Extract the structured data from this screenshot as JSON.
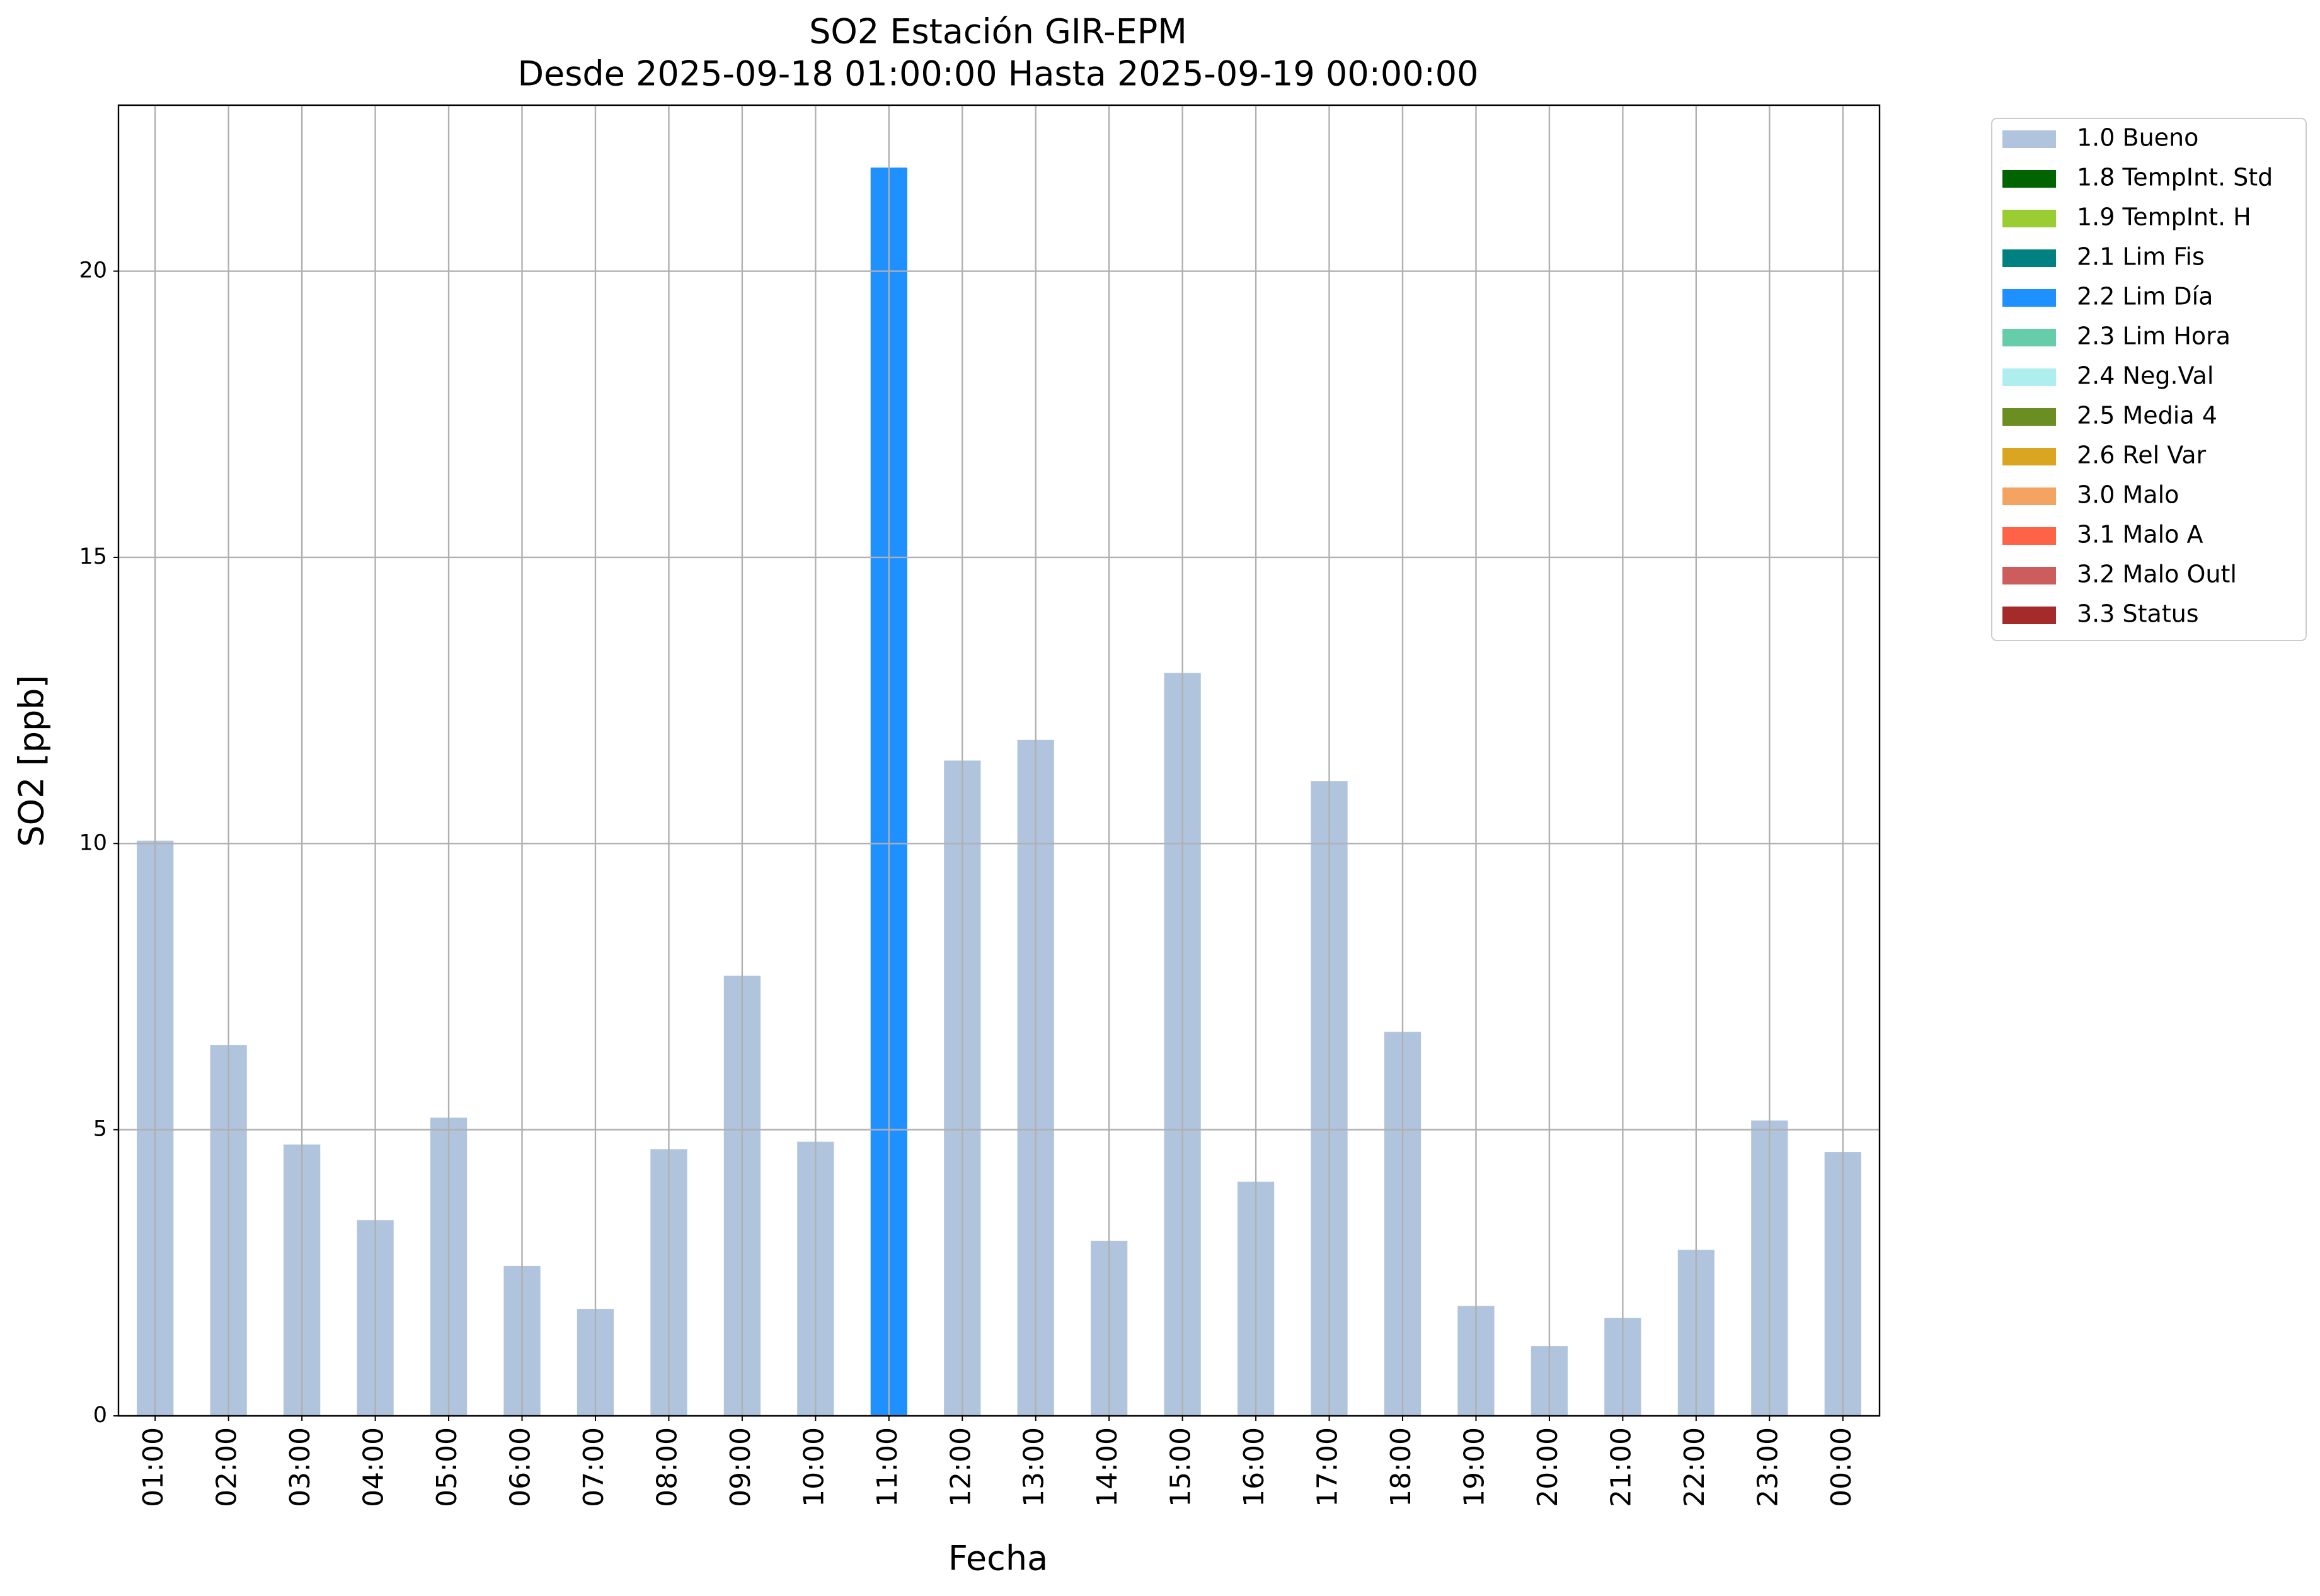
{
  "chart_data": {
    "type": "bar",
    "stacked": true,
    "title": "SO2 Estación GIR-EPM",
    "subtitle": "Desde 2025-09-18 01:00:00 Hasta 2025-09-19 00:00:00",
    "xlabel": "Fecha",
    "ylabel": "SO2 [ppb]",
    "categories": [
      "01:00",
      "02:00",
      "03:00",
      "04:00",
      "05:00",
      "06:00",
      "07:00",
      "08:00",
      "09:00",
      "10:00",
      "11:00",
      "12:00",
      "13:00",
      "14:00",
      "15:00",
      "16:00",
      "17:00",
      "18:00",
      "19:00",
      "20:00",
      "21:00",
      "22:00",
      "23:00",
      "00:00"
    ],
    "series": [
      {
        "name": "1.0 Bueno",
        "color": "#b0c4de",
        "values": [
          10.05,
          6.48,
          4.74,
          3.42,
          5.21,
          2.62,
          1.87,
          4.66,
          7.69,
          4.79,
          null,
          11.45,
          11.81,
          3.06,
          12.98,
          4.09,
          11.09,
          6.71,
          1.92,
          1.22,
          1.71,
          2.9,
          5.16,
          4.61
        ]
      },
      {
        "name": "1.8 TempInt. Std",
        "color": "#006400",
        "values": [
          null,
          null,
          null,
          null,
          null,
          null,
          null,
          null,
          null,
          null,
          null,
          null,
          null,
          null,
          null,
          null,
          null,
          null,
          null,
          null,
          null,
          null,
          null,
          null
        ]
      },
      {
        "name": "1.9 TempInt. H",
        "color": "#9acd32",
        "values": [
          null,
          null,
          null,
          null,
          null,
          null,
          null,
          null,
          null,
          null,
          null,
          null,
          null,
          null,
          null,
          null,
          null,
          null,
          null,
          null,
          null,
          null,
          null,
          null
        ]
      },
      {
        "name": "2.1 Lim Fis",
        "color": "#008080",
        "values": [
          null,
          null,
          null,
          null,
          null,
          null,
          null,
          null,
          null,
          null,
          null,
          null,
          null,
          null,
          null,
          null,
          null,
          null,
          null,
          null,
          null,
          null,
          null,
          null
        ]
      },
      {
        "name": "2.2 Lim Día",
        "color": "#1e90ff",
        "values": [
          null,
          null,
          null,
          null,
          null,
          null,
          null,
          null,
          null,
          null,
          21.81,
          null,
          null,
          null,
          null,
          null,
          null,
          null,
          null,
          null,
          null,
          null,
          null,
          null
        ]
      },
      {
        "name": "2.3 Lim Hora",
        "color": "#66cdaa",
        "values": [
          null,
          null,
          null,
          null,
          null,
          null,
          null,
          null,
          null,
          null,
          null,
          null,
          null,
          null,
          null,
          null,
          null,
          null,
          null,
          null,
          null,
          null,
          null,
          null
        ]
      },
      {
        "name": "2.4 Neg.Val",
        "color": "#afeeee",
        "values": [
          null,
          null,
          null,
          null,
          null,
          null,
          null,
          null,
          null,
          null,
          null,
          null,
          null,
          null,
          null,
          null,
          null,
          null,
          null,
          null,
          null,
          null,
          null,
          null
        ]
      },
      {
        "name": "2.5 Media 4",
        "color": "#6b8e23",
        "values": [
          null,
          null,
          null,
          null,
          null,
          null,
          null,
          null,
          null,
          null,
          null,
          null,
          null,
          null,
          null,
          null,
          null,
          null,
          null,
          null,
          null,
          null,
          null,
          null
        ]
      },
      {
        "name": "2.6 Rel Var",
        "color": "#daa520",
        "values": [
          null,
          null,
          null,
          null,
          null,
          null,
          null,
          null,
          null,
          null,
          null,
          null,
          null,
          null,
          null,
          null,
          null,
          null,
          null,
          null,
          null,
          null,
          null,
          null
        ]
      },
      {
        "name": "3.0 Malo",
        "color": "#f4a460",
        "values": [
          null,
          null,
          null,
          null,
          null,
          null,
          null,
          null,
          null,
          null,
          null,
          null,
          null,
          null,
          null,
          null,
          null,
          null,
          null,
          null,
          null,
          null,
          null,
          null
        ]
      },
      {
        "name": "3.1 Malo A",
        "color": "#ff6347",
        "values": [
          null,
          null,
          null,
          null,
          null,
          null,
          null,
          null,
          null,
          null,
          null,
          null,
          null,
          null,
          null,
          null,
          null,
          null,
          null,
          null,
          null,
          null,
          null,
          null
        ]
      },
      {
        "name": "3.2 Malo Outl",
        "color": "#cd5c5c",
        "values": [
          null,
          null,
          null,
          null,
          null,
          null,
          null,
          null,
          null,
          null,
          null,
          null,
          null,
          null,
          null,
          null,
          null,
          null,
          null,
          null,
          null,
          null,
          null,
          null
        ]
      },
      {
        "name": "3.3 Status",
        "color": "#a52a2a",
        "values": [
          null,
          null,
          null,
          null,
          null,
          null,
          null,
          null,
          null,
          null,
          null,
          null,
          null,
          null,
          null,
          null,
          null,
          null,
          null,
          null,
          null,
          null,
          null,
          null
        ]
      }
    ],
    "ylim": [
      0,
      22.9
    ],
    "yticks": [
      0,
      5,
      10,
      15,
      20
    ],
    "grid": true
  }
}
